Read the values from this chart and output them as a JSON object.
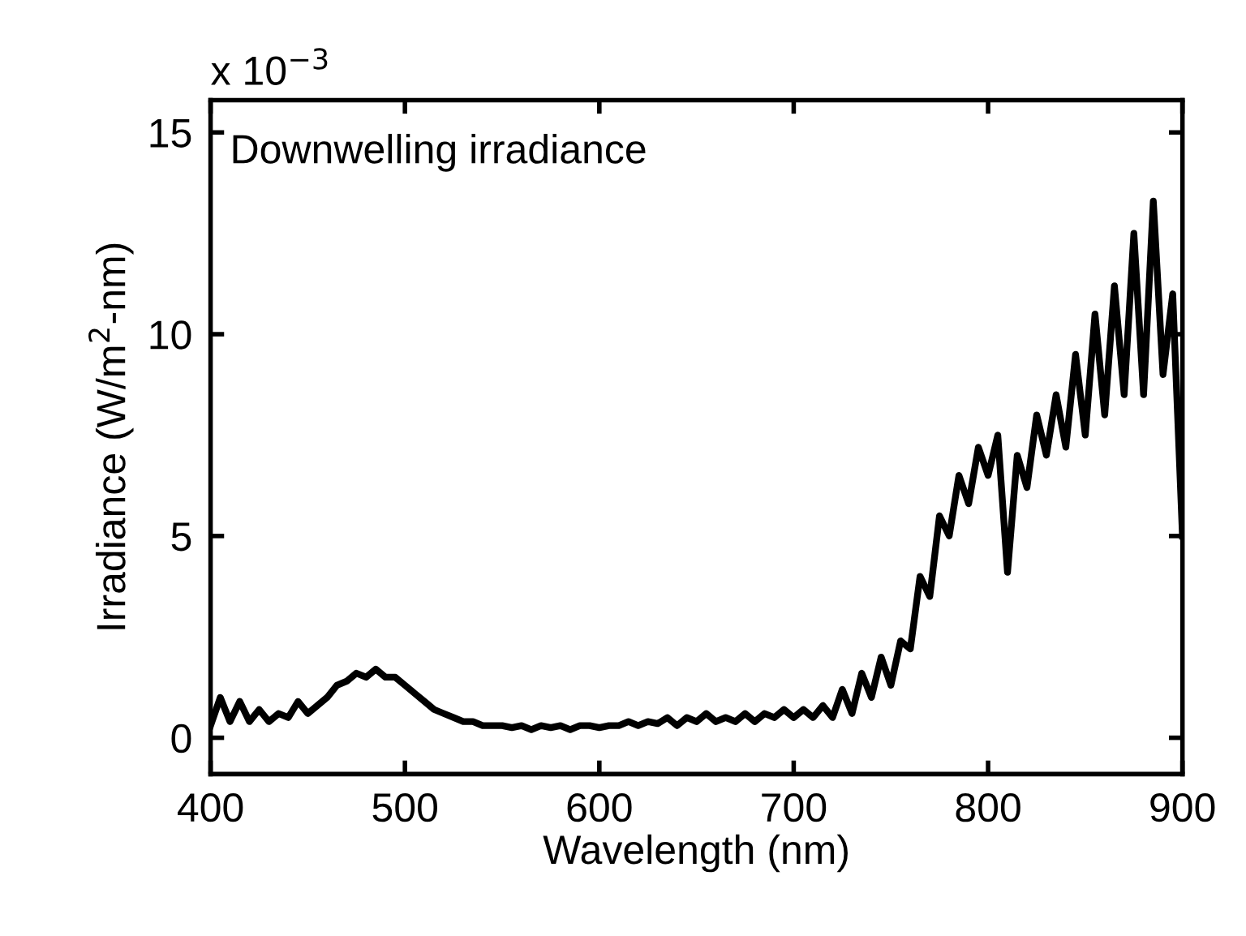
{
  "chart_data": {
    "type": "line",
    "xlabel": "Wavelength (nm)",
    "ylabel": "Irradiance (W/m$^{2}$-nm)",
    "annotations": [
      "x 10$^{−3}$",
      "Downwelling irradiance"
    ],
    "x": [
      400,
      405,
      410,
      415,
      420,
      425,
      430,
      435,
      440,
      445,
      450,
      455,
      460,
      465,
      470,
      475,
      480,
      485,
      490,
      495,
      500,
      505,
      510,
      515,
      520,
      525,
      530,
      535,
      540,
      545,
      550,
      555,
      560,
      565,
      570,
      575,
      580,
      585,
      590,
      595,
      600,
      605,
      610,
      615,
      620,
      625,
      630,
      635,
      640,
      645,
      650,
      655,
      660,
      665,
      670,
      675,
      680,
      685,
      690,
      695,
      700,
      705,
      710,
      715,
      720,
      725,
      730,
      735,
      740,
      745,
      750,
      755,
      760,
      765,
      770,
      775,
      780,
      785,
      790,
      795,
      800,
      805,
      810,
      815,
      820,
      825,
      830,
      835,
      840,
      845,
      850,
      855,
      860,
      865,
      870,
      875,
      880,
      885,
      890,
      895,
      900
    ],
    "series": [
      {
        "color": "#000000",
        "values": [
          0.3,
          1.0,
          0.4,
          0.9,
          0.4,
          0.7,
          0.4,
          0.6,
          0.5,
          0.9,
          0.6,
          0.8,
          1.0,
          1.3,
          1.4,
          1.6,
          1.5,
          1.7,
          1.5,
          1.5,
          1.3,
          1.1,
          0.9,
          0.7,
          0.6,
          0.5,
          0.4,
          0.4,
          0.3,
          0.3,
          0.3,
          0.25,
          0.3,
          0.2,
          0.3,
          0.25,
          0.3,
          0.2,
          0.3,
          0.3,
          0.25,
          0.3,
          0.3,
          0.4,
          0.3,
          0.4,
          0.35,
          0.5,
          0.3,
          0.5,
          0.4,
          0.6,
          0.4,
          0.5,
          0.4,
          0.6,
          0.4,
          0.6,
          0.5,
          0.7,
          0.5,
          0.7,
          0.5,
          0.8,
          0.5,
          1.2,
          0.6,
          1.6,
          1.0,
          2.0,
          1.3,
          2.4,
          2.2,
          4.0,
          3.5,
          5.5,
          5.0,
          6.5,
          5.8,
          7.2,
          6.5,
          7.5,
          4.1,
          7.0,
          6.2,
          8.0,
          7.0,
          8.5,
          7.2,
          9.5,
          7.5,
          10.5,
          8.0,
          11.2,
          8.5,
          12.5,
          8.5,
          13.3,
          9.0,
          11.0,
          5.0
        ]
      }
    ],
    "xlim": [
      400,
      900
    ],
    "xticks": [
      400,
      500,
      600,
      700,
      800,
      900
    ],
    "ylim": [
      -0.9,
      15.8
    ],
    "yticks": [
      0,
      5,
      10,
      15
    ],
    "grid": false,
    "legend": false,
    "marker": "none",
    "line_style": "solid"
  }
}
